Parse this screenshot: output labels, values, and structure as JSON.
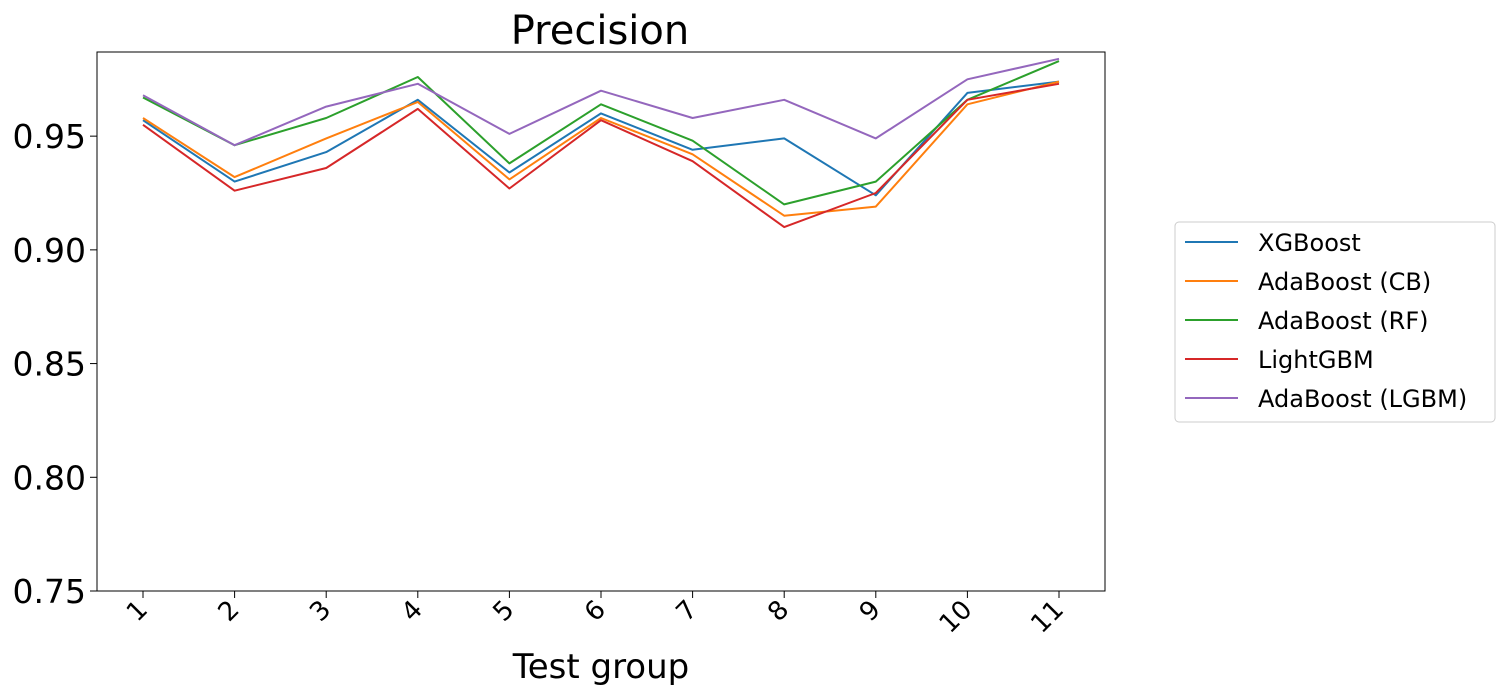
{
  "chart_data": {
    "type": "line",
    "title": "Precision",
    "xlabel": "Test group",
    "ylabel": "",
    "categories": [
      "1",
      "2",
      "3",
      "4",
      "5",
      "6",
      "7",
      "8",
      "9",
      "10",
      "11"
    ],
    "ylim": [
      0.75,
      0.987
    ],
    "yticks": [
      "0.75",
      "0.80",
      "0.85",
      "0.90",
      "0.95"
    ],
    "legend_position": "right",
    "series": [
      {
        "name": "XGBoost",
        "color": "#1f77b4",
        "values": [
          0.957,
          0.93,
          0.943,
          0.966,
          0.934,
          0.96,
          0.944,
          0.949,
          0.924,
          0.969,
          0.974
        ]
      },
      {
        "name": "AdaBoost (CB)",
        "color": "#ff7f0e",
        "values": [
          0.958,
          0.932,
          0.949,
          0.965,
          0.931,
          0.958,
          0.942,
          0.915,
          0.919,
          0.964,
          0.974
        ]
      },
      {
        "name": "AdaBoost (RF)",
        "color": "#2ca02c",
        "values": [
          0.967,
          0.946,
          0.958,
          0.976,
          0.938,
          0.964,
          0.948,
          0.92,
          0.93,
          0.966,
          0.983
        ]
      },
      {
        "name": "LightGBM",
        "color": "#d62728",
        "values": [
          0.955,
          0.926,
          0.936,
          0.962,
          0.927,
          0.957,
          0.939,
          0.91,
          0.925,
          0.966,
          0.973
        ]
      },
      {
        "name": "AdaBoost (LGBM)",
        "color": "#9467bd",
        "values": [
          0.968,
          0.946,
          0.963,
          0.973,
          0.951,
          0.97,
          0.958,
          0.966,
          0.949,
          0.975,
          0.984
        ]
      }
    ]
  }
}
